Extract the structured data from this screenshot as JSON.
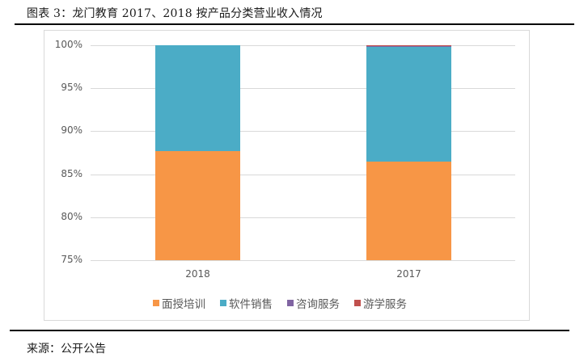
{
  "figure": {
    "title": "图表 3：龙门教育 2017、2018 按产品分类营业收入情况",
    "source": "来源：公开公告"
  },
  "chart_data": {
    "type": "bar",
    "stacked": true,
    "percent_stacked": true,
    "title": "",
    "xlabel": "",
    "ylabel": "",
    "ylim": [
      0.75,
      1.0
    ],
    "yticks": [
      "75%",
      "80%",
      "85%",
      "90%",
      "95%",
      "100%"
    ],
    "categories": [
      "2018",
      "2017"
    ],
    "series": [
      {
        "name": "面授培训",
        "color": "#f79646",
        "values": [
          0.877,
          0.865
        ]
      },
      {
        "name": "软件销售",
        "color": "#4bacc6",
        "values": [
          0.123,
          0.133
        ]
      },
      {
        "name": "咨询服务",
        "color": "#8064a2",
        "values": [
          0.0,
          0.001
        ]
      },
      {
        "name": "游学服务",
        "color": "#c0504d",
        "values": [
          0.0,
          0.001
        ]
      }
    ],
    "legend_position": "bottom",
    "grid": true
  }
}
